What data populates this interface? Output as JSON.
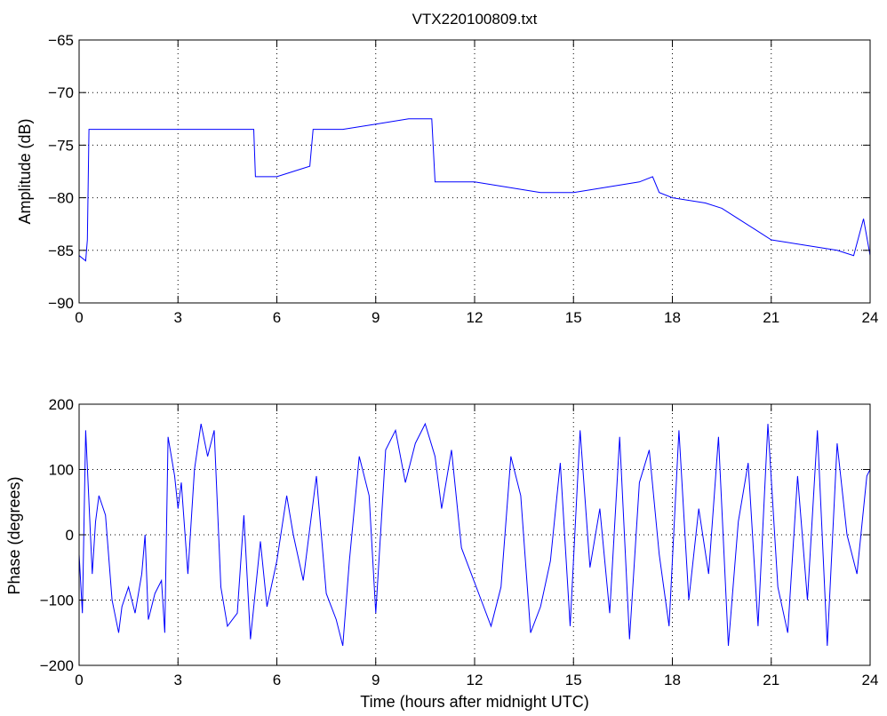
{
  "chart_data": [
    {
      "type": "line",
      "title": "VTX220100809.txt",
      "xlabel": "",
      "ylabel": "Amplitude (dB)",
      "xlim": [
        0,
        24
      ],
      "ylim": [
        -90,
        -65
      ],
      "xticks": [
        "0",
        "3",
        "6",
        "9",
        "12",
        "15",
        "18",
        "21",
        "24"
      ],
      "yticks": [
        "-90",
        "-85",
        "-80",
        "-75",
        "-70",
        "-65"
      ],
      "grid": true,
      "line_color": "#0000ff",
      "x": [
        0,
        0.2,
        0.25,
        0.3,
        1,
        2,
        3,
        4,
        5,
        5.3,
        5.35,
        6,
        6.5,
        7,
        7.1,
        7.2,
        8,
        9,
        10,
        10.7,
        10.8,
        11,
        12,
        13,
        14,
        15,
        16,
        17,
        17.4,
        17.6,
        18,
        19,
        19.5,
        20,
        20.5,
        21,
        22,
        23,
        23.5,
        23.8,
        24
      ],
      "y": [
        -85.5,
        -86,
        -84,
        -73.5,
        -73.5,
        -73.5,
        -73.5,
        -73.5,
        -73.5,
        -73.5,
        -78,
        -78,
        -77.5,
        -77,
        -73.5,
        -73.5,
        -73.5,
        -73,
        -72.5,
        -72.5,
        -78.5,
        -78.5,
        -78.5,
        -79,
        -79.5,
        -79.5,
        -79,
        -78.5,
        -78,
        -79.5,
        -80,
        -80.5,
        -81,
        -82,
        -83,
        -84,
        -84.5,
        -85,
        -85.5,
        -82,
        -85.5
      ]
    },
    {
      "type": "line",
      "title": "",
      "xlabel": "Time (hours after midnight UTC)",
      "ylabel": "Phase (degrees)",
      "xlim": [
        0,
        24
      ],
      "ylim": [
        -200,
        200
      ],
      "xticks": [
        "0",
        "3",
        "6",
        "9",
        "12",
        "15",
        "18",
        "21",
        "24"
      ],
      "yticks": [
        "-200",
        "-100",
        "0",
        "100",
        "200"
      ],
      "grid": true,
      "line_color": "#0000ff",
      "x": [
        0,
        0.1,
        0.2,
        0.4,
        0.5,
        0.6,
        0.8,
        1,
        1.2,
        1.3,
        1.5,
        1.7,
        1.9,
        2,
        2.1,
        2.3,
        2.5,
        2.6,
        2.7,
        2.9,
        3,
        3.1,
        3.3,
        3.5,
        3.7,
        3.9,
        4.1,
        4.3,
        4.5,
        4.8,
        5,
        5.2,
        5.5,
        5.7,
        6,
        6.3,
        6.5,
        6.8,
        7,
        7.2,
        7.5,
        7.8,
        8,
        8.2,
        8.5,
        8.8,
        9,
        9.3,
        9.6,
        9.9,
        10.2,
        10.5,
        10.8,
        11,
        11.3,
        11.6,
        11.9,
        12.2,
        12.5,
        12.8,
        13.1,
        13.4,
        13.7,
        14,
        14.3,
        14.6,
        14.9,
        15.2,
        15.5,
        15.8,
        16.1,
        16.4,
        16.7,
        17,
        17.3,
        17.6,
        17.9,
        18.2,
        18.5,
        18.8,
        19.1,
        19.4,
        19.7,
        20,
        20.3,
        20.6,
        20.9,
        21.2,
        21.5,
        21.8,
        22.1,
        22.4,
        22.7,
        23,
        23.3,
        23.6,
        23.9,
        24
      ],
      "y": [
        -30,
        -120,
        160,
        -60,
        20,
        60,
        30,
        -100,
        -150,
        -110,
        -80,
        -120,
        -60,
        0,
        -130,
        -90,
        -70,
        -150,
        150,
        90,
        40,
        80,
        -60,
        100,
        170,
        120,
        160,
        -80,
        -140,
        -120,
        30,
        -160,
        -10,
        -110,
        -40,
        60,
        0,
        -70,
        10,
        90,
        -90,
        -130,
        -170,
        -40,
        120,
        60,
        -120,
        130,
        160,
        80,
        140,
        170,
        120,
        40,
        130,
        -20,
        -60,
        -100,
        -140,
        -80,
        120,
        60,
        -150,
        -110,
        -40,
        110,
        -140,
        160,
        -50,
        40,
        -120,
        150,
        -160,
        80,
        130,
        -30,
        -140,
        160,
        -100,
        40,
        -60,
        150,
        -170,
        20,
        110,
        -140,
        170,
        -80,
        -150,
        90,
        -100,
        160,
        -170,
        140,
        0,
        -60,
        90,
        100
      ]
    }
  ]
}
